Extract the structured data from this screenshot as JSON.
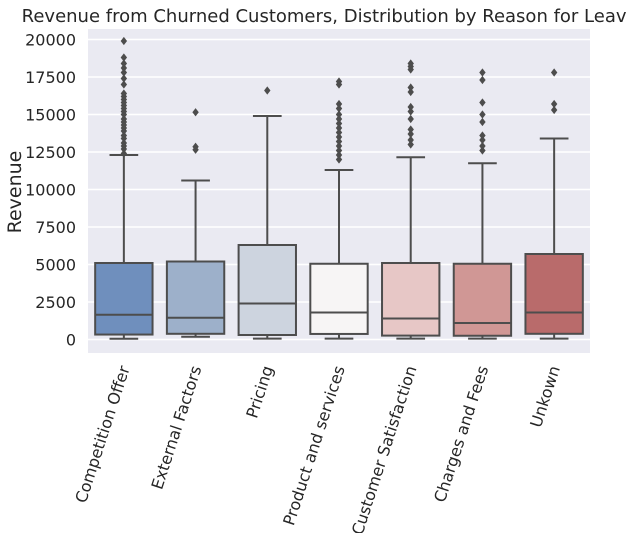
{
  "chart_data": {
    "type": "box",
    "title": "Revenue from Churned Customers, Distribution by Reason for Leaving",
    "xlabel": "",
    "ylabel": "Revenue",
    "ylim": [
      -900,
      20700
    ],
    "yticks": [
      0,
      2500,
      5000,
      7500,
      10000,
      12500,
      15000,
      17500,
      20000
    ],
    "ytick_labels": [
      "0",
      "2500",
      "5000",
      "7500",
      "10000",
      "12500",
      "15000",
      "17500",
      "20000"
    ],
    "grid": true,
    "categories": [
      "Competition Offer",
      "External Factors",
      "Pricing",
      "Product and services",
      "Customer Satisfaction",
      "Charges and Fees",
      "Unkown"
    ],
    "boxes": [
      {
        "category": "Competition Offer",
        "color": "#6f8fbd",
        "whisker_low": 50,
        "q1": 330,
        "median": 1650,
        "q3": 5100,
        "whisker_high": 12300,
        "outliers": [
          12400,
          12700,
          12900,
          13100,
          13400,
          13600,
          13900,
          14100,
          14300,
          14500,
          14700,
          15000,
          15200,
          15400,
          15600,
          15800,
          16000,
          16200,
          16400,
          17000,
          17400,
          17800,
          18100,
          18400,
          18800,
          19900
        ]
      },
      {
        "category": "External Factors",
        "color": "#9db0ca",
        "whisker_low": 180,
        "q1": 380,
        "median": 1450,
        "q3": 5200,
        "whisker_high": 10600,
        "outliers": [
          12650,
          12850,
          15150
        ]
      },
      {
        "category": "Pricing",
        "color": "#cdd4df",
        "whisker_low": 60,
        "q1": 300,
        "median": 2400,
        "q3": 6300,
        "whisker_high": 14900,
        "outliers": [
          16600
        ]
      },
      {
        "category": "Product and services",
        "color": "#f7f5f5",
        "whisker_low": 60,
        "q1": 370,
        "median": 1800,
        "q3": 5050,
        "whisker_high": 11300,
        "outliers": [
          12000,
          12300,
          12600,
          12900,
          13200,
          13500,
          13800,
          14100,
          14400,
          14700,
          15000,
          15400,
          15700,
          17000,
          17200
        ]
      },
      {
        "category": "Customer Satisfaction",
        "color": "#e7c7c6",
        "whisker_low": 60,
        "q1": 260,
        "median": 1400,
        "q3": 5100,
        "whisker_high": 12150,
        "outliers": [
          13000,
          13300,
          13700,
          14000,
          14700,
          15200,
          15500,
          16500,
          16800,
          18000,
          18200,
          18400
        ]
      },
      {
        "category": "Charges and Fees",
        "color": "#d09795",
        "whisker_low": 60,
        "q1": 250,
        "median": 1100,
        "q3": 5050,
        "whisker_high": 11750,
        "outliers": [
          12600,
          12900,
          13300,
          13600,
          14500,
          15000,
          15800,
          17300,
          17800
        ]
      },
      {
        "category": "Unkown",
        "color": "#b96b6b",
        "whisker_low": 60,
        "q1": 380,
        "median": 1800,
        "q3": 5700,
        "whisker_high": 13400,
        "outliers": [
          15300,
          15700,
          17800
        ]
      }
    ]
  },
  "colors": {
    "plot_background": "#eaeaf2",
    "grid": "#ffffff",
    "box_edge": "#4d4d4d"
  }
}
